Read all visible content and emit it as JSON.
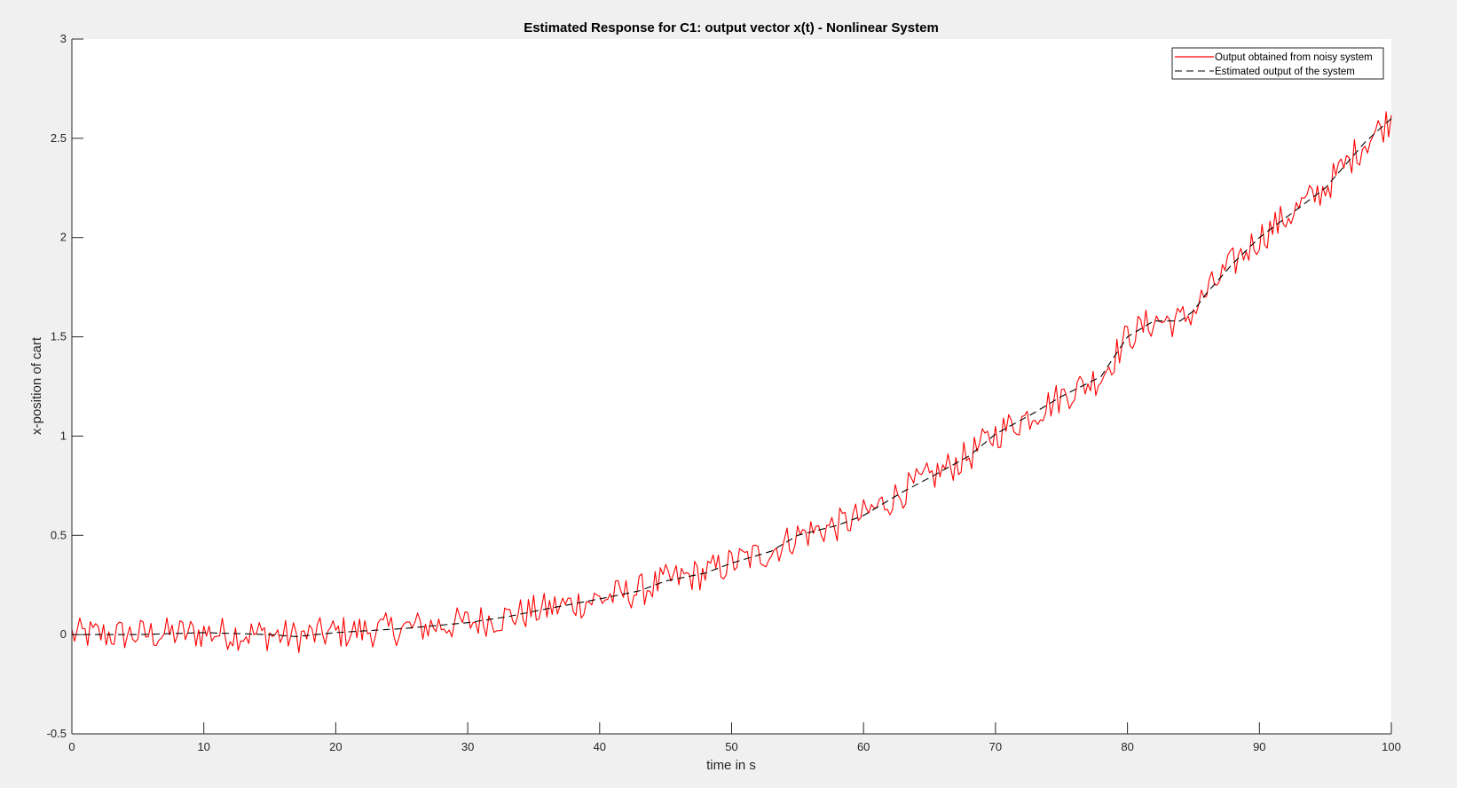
{
  "window": {
    "background": "#f0f0f0"
  },
  "chart_data": {
    "type": "line",
    "title": "Estimated Response for C1: output vector x(t) - Nonlinear System",
    "xlabel": "time in s",
    "ylabel": "x-position of cart",
    "xlim": [
      0,
      100
    ],
    "ylim": [
      -0.5,
      3
    ],
    "xticks": [
      0,
      10,
      20,
      30,
      40,
      50,
      60,
      70,
      80,
      90,
      100
    ],
    "xtick_labels": [
      "0",
      "10",
      "20",
      "30",
      "40",
      "50",
      "60",
      "70",
      "80",
      "90",
      "100"
    ],
    "yticks": [
      -0.5,
      0,
      0.5,
      1,
      1.5,
      2,
      2.5,
      3
    ],
    "ytick_labels": [
      "-0.5",
      "0",
      "0.5",
      "1",
      "1.5",
      "2",
      "2.5",
      "3"
    ],
    "grid": false,
    "legend_location": "top-right",
    "series": [
      {
        "name": "Output obtained from noisy system",
        "color": "#ff0000",
        "style": "solid",
        "noise_amplitude": 0.085,
        "sample_step": 0.2
      },
      {
        "name": "Estimated output of the system",
        "color": "#000000",
        "style": "dashed",
        "x": [
          0,
          5,
          10,
          15,
          17,
          20,
          25,
          30,
          33,
          36,
          40,
          43,
          45,
          48,
          50,
          53,
          55,
          58,
          60,
          63,
          65,
          68,
          70,
          73,
          75,
          78,
          80,
          82,
          84,
          85,
          86,
          88,
          90,
          93,
          95,
          98,
          100
        ],
        "y": [
          0,
          0,
          0.01,
          0,
          -0.01,
          0.01,
          0.03,
          0.06,
          0.09,
          0.13,
          0.18,
          0.22,
          0.27,
          0.31,
          0.36,
          0.42,
          0.5,
          0.55,
          0.6,
          0.72,
          0.79,
          0.9,
          1.01,
          1.12,
          1.2,
          1.3,
          1.5,
          1.58,
          1.58,
          1.63,
          1.72,
          1.87,
          2.0,
          2.15,
          2.25,
          2.48,
          2.6
        ]
      }
    ]
  }
}
